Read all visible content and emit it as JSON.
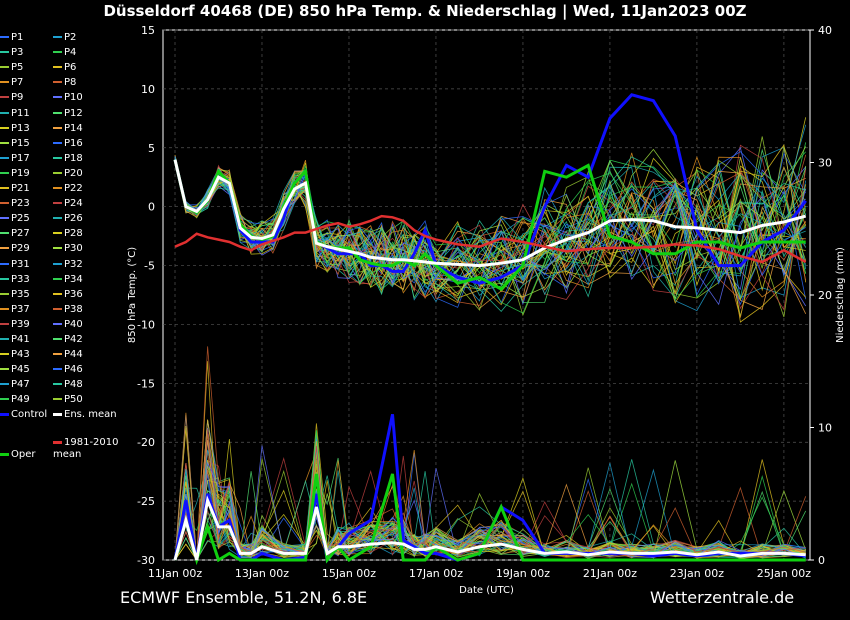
{
  "title": "Düsseldorf 40468 (DE)  850 hPa Temp. & Niederschlag | Wed, 11Jan2023 00Z",
  "footer": {
    "source": "ECMWF Ensemble, 51.2N, 6.8E",
    "site": "Wetterzentrale.de"
  },
  "colors": {
    "control": "#1010ff",
    "oper": "#10d010",
    "mean": "#ffffff",
    "climate": "#e03030",
    "grid": "#555555"
  },
  "legend": {
    "members": [
      "P1",
      "P2",
      "P3",
      "P4",
      "P5",
      "P6",
      "P7",
      "P8",
      "P9",
      "P10",
      "P11",
      "P12",
      "P13",
      "P14",
      "P15",
      "P16",
      "P17",
      "P18",
      "P19",
      "P20",
      "P21",
      "P22",
      "P23",
      "P24",
      "P25",
      "P26",
      "P27",
      "P28",
      "P29",
      "P30",
      "P31",
      "P32",
      "P33",
      "P34",
      "P35",
      "P36",
      "P37",
      "P38",
      "P39",
      "P40",
      "P41",
      "P42",
      "P43",
      "P44",
      "P45",
      "P46",
      "P47",
      "P48",
      "P49",
      "P50"
    ],
    "control": "Control",
    "ens_mean": "Ens. mean",
    "climate": "1981-2010 mean",
    "oper": "Oper"
  },
  "chart_data": {
    "type": "line",
    "xlabel": "Date (UTC)",
    "ylabel_left": "850 hPa Temp. (°C)",
    "ylabel_right": "Niederschlag (mm)",
    "x_tick_labels": [
      "11Jan 00z",
      "13Jan 00z",
      "15Jan 00z",
      "17Jan 00z",
      "19Jan 00z",
      "21Jan 00z",
      "23Jan 00z",
      "25Jan 00z"
    ],
    "y_left_ticks": [
      15,
      10,
      5,
      0,
      -5,
      -10,
      -15,
      -20,
      -25,
      -30
    ],
    "y_right_ticks": [
      40,
      30,
      20,
      10,
      0
    ],
    "ylim_left": [
      -30,
      15
    ],
    "ylim_right": [
      0,
      40
    ],
    "x_range_days": [
      0,
      14.6
    ],
    "grid": true,
    "temp_days": [
      0,
      0.25,
      0.5,
      0.75,
      1,
      1.25,
      1.5,
      1.75,
      2,
      2.25,
      2.5,
      2.75,
      3,
      3.25,
      3.5,
      3.75,
      4,
      4.25,
      4.5,
      4.75,
      5,
      5.25,
      5.5,
      5.75,
      6,
      6.5,
      7,
      7.5,
      8,
      8.5,
      9,
      9.5,
      10,
      10.5,
      11,
      11.5,
      12,
      12.5,
      13,
      13.5,
      14,
      14.5
    ],
    "series": [
      {
        "name": "Control",
        "values": [
          4,
          0,
          -0.5,
          0.5,
          3,
          2,
          -2,
          -3,
          -3,
          -3,
          -1,
          2,
          3,
          -3,
          -3.5,
          -4,
          -4,
          -4,
          -5,
          -5,
          -5.5,
          -5.5,
          -4,
          -2,
          -5,
          -6,
          -6.5,
          -6,
          -5,
          0,
          3.5,
          2.5,
          7.5,
          9.5,
          9,
          6,
          -2,
          -5,
          -5,
          -3,
          -2,
          0.5
        ]
      },
      {
        "name": "Oper",
        "values": [
          4,
          0,
          -0.5,
          0.5,
          3,
          2,
          -1.5,
          -2.5,
          -2.8,
          -2.5,
          0,
          2,
          3,
          -3,
          -3.4,
          -3.5,
          -3.5,
          -4.5,
          -4.8,
          -5,
          -5,
          -4.5,
          -5,
          -4,
          -5,
          -6.5,
          -6,
          -7,
          -5,
          3,
          2.5,
          3.5,
          -2.5,
          -3,
          -4,
          -4,
          -3,
          -3,
          -3.5,
          -3,
          -3,
          -3
        ]
      },
      {
        "name": "Ens. mean",
        "values": [
          4,
          0,
          -0.4,
          0.6,
          2.5,
          2,
          -1.8,
          -2.6,
          -2.7,
          -2.4,
          -0.2,
          1.5,
          2,
          -3.1,
          -3.4,
          -3.6,
          -3.8,
          -4,
          -4.3,
          -4.4,
          -4.5,
          -4.5,
          -4.6,
          -4.7,
          -4.8,
          -4.9,
          -5,
          -4.8,
          -4.5,
          -3.5,
          -2.8,
          -2.2,
          -1.2,
          -1.1,
          -1.2,
          -1.7,
          -1.8,
          -2,
          -2.2,
          -1.6,
          -1.3,
          -0.8
        ]
      },
      {
        "name": "1981-2010 mean",
        "values": [
          -3.4,
          -3,
          -2.3,
          -2.6,
          -2.8,
          -3,
          -3.4,
          -3.7,
          -3.2,
          -2.9,
          -2.6,
          -2.2,
          -2.2,
          -1.9,
          -1.6,
          -1.4,
          -1.7,
          -1.5,
          -1.2,
          -0.8,
          -0.9,
          -1.2,
          -2,
          -2.5,
          -2.8,
          -3.2,
          -3.4,
          -2.7,
          -3,
          -3.4,
          -3.8,
          -3.6,
          -3.5,
          -3.5,
          -3.4,
          -3.2,
          -3.3,
          -3.6,
          -4.2,
          -4.7,
          -3.7,
          -4.7
        ]
      }
    ],
    "precip_days": [
      0,
      0.25,
      0.5,
      0.75,
      1,
      1.25,
      1.5,
      1.75,
      2,
      2.5,
      3,
      3.25,
      3.5,
      3.75,
      4,
      4.5,
      5,
      5.25,
      5.5,
      5.75,
      6,
      6.5,
      7,
      7.5,
      8,
      8.5,
      9,
      9.5,
      10,
      10.5,
      11,
      11.5,
      12,
      12.5,
      13,
      13.5,
      14,
      14.5
    ],
    "precip_series": [
      {
        "name": "Control",
        "values": [
          0,
          4.5,
          0,
          5,
          2.5,
          3,
          0,
          0,
          0.5,
          0,
          0.2,
          5,
          0,
          1,
          2,
          3,
          11,
          1.5,
          1,
          0.5,
          0.5,
          0,
          0.5,
          4,
          3,
          0.5,
          0.5,
          0.5,
          0.5,
          0.5,
          0.3,
          0.5,
          0.3,
          0.5,
          0.5,
          0.5,
          0.5,
          0.3
        ]
      },
      {
        "name": "Oper",
        "values": [
          0,
          3,
          0,
          2.5,
          0,
          0.5,
          0,
          0,
          0,
          0,
          0,
          6.5,
          0,
          1,
          0,
          1,
          6.5,
          0,
          0,
          0,
          1,
          0,
          0.5,
          4,
          0,
          0,
          0,
          0,
          0,
          0,
          0,
          0,
          0,
          0,
          0,
          0,
          0,
          0
        ]
      },
      {
        "name": "Ens. mean",
        "values": [
          0,
          3,
          0,
          4.5,
          2.5,
          2.5,
          0.5,
          0.5,
          1,
          0.5,
          0.5,
          4,
          0.5,
          1,
          1,
          1.2,
          1.3,
          1.2,
          0.8,
          0.8,
          1,
          0.6,
          1,
          1.2,
          0.8,
          0.5,
          0.6,
          0.4,
          0.6,
          0.5,
          0.5,
          0.6,
          0.4,
          0.6,
          0.3,
          0.5,
          0.5,
          0.4
        ]
      }
    ]
  }
}
